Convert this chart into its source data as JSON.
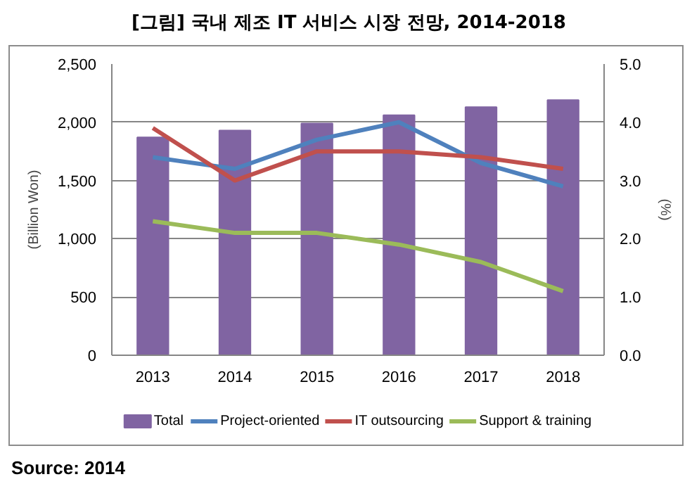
{
  "chart_data": {
    "type": "bar",
    "title": "[그림] 국내 제조 IT 서비스 시장 전망, 2014-2018",
    "ylabel": "(Billion Won)",
    "y2label": "(%)",
    "annotations": [
      "Source: 2014"
    ],
    "categories": [
      "2013",
      "2014",
      "2015",
      "2016",
      "2017",
      "2018"
    ],
    "series": [
      {
        "name": "Total",
        "color": "#8064a2",
        "values": [
          1870,
          1930,
          1990,
          2060,
          2130,
          2190
        ]
      },
      {
        "name": "Project-oriented",
        "type": "line",
        "axis": "y2",
        "color": "#4f81bd",
        "values": [
          3.4,
          3.2,
          3.7,
          4.0,
          3.3,
          2.9
        ]
      },
      {
        "name": "IT outsourcing",
        "type": "line",
        "axis": "y2",
        "color": "#c0504d",
        "values": [
          3.9,
          3.0,
          3.5,
          3.5,
          3.4,
          3.2
        ]
      },
      {
        "name": "Support & training",
        "type": "line",
        "axis": "y2",
        "color": "#9bbb59",
        "values": [
          2.3,
          2.1,
          2.1,
          1.9,
          1.6,
          1.1
        ]
      }
    ],
    "ylim": [
      0,
      2500
    ],
    "yticks": [
      0,
      500,
      {
        "value": 1000,
        "label": "1,000"
      },
      {
        "value": 1500,
        "label": "1,500"
      },
      {
        "value": 2000,
        "label": "2,000"
      },
      {
        "value": 2500,
        "label": "2,500"
      }
    ],
    "y2lim": [
      0,
      5
    ],
    "y2ticks": [
      {
        "value": 0,
        "label": "0.0"
      },
      {
        "value": 1,
        "label": "1.0"
      },
      {
        "value": 2,
        "label": "2.0"
      },
      {
        "value": 3,
        "label": "3.0"
      },
      {
        "value": 4,
        "label": "4.0"
      },
      {
        "value": 5,
        "label": "5.0"
      }
    ],
    "grid": "y",
    "legend": "bottom"
  }
}
